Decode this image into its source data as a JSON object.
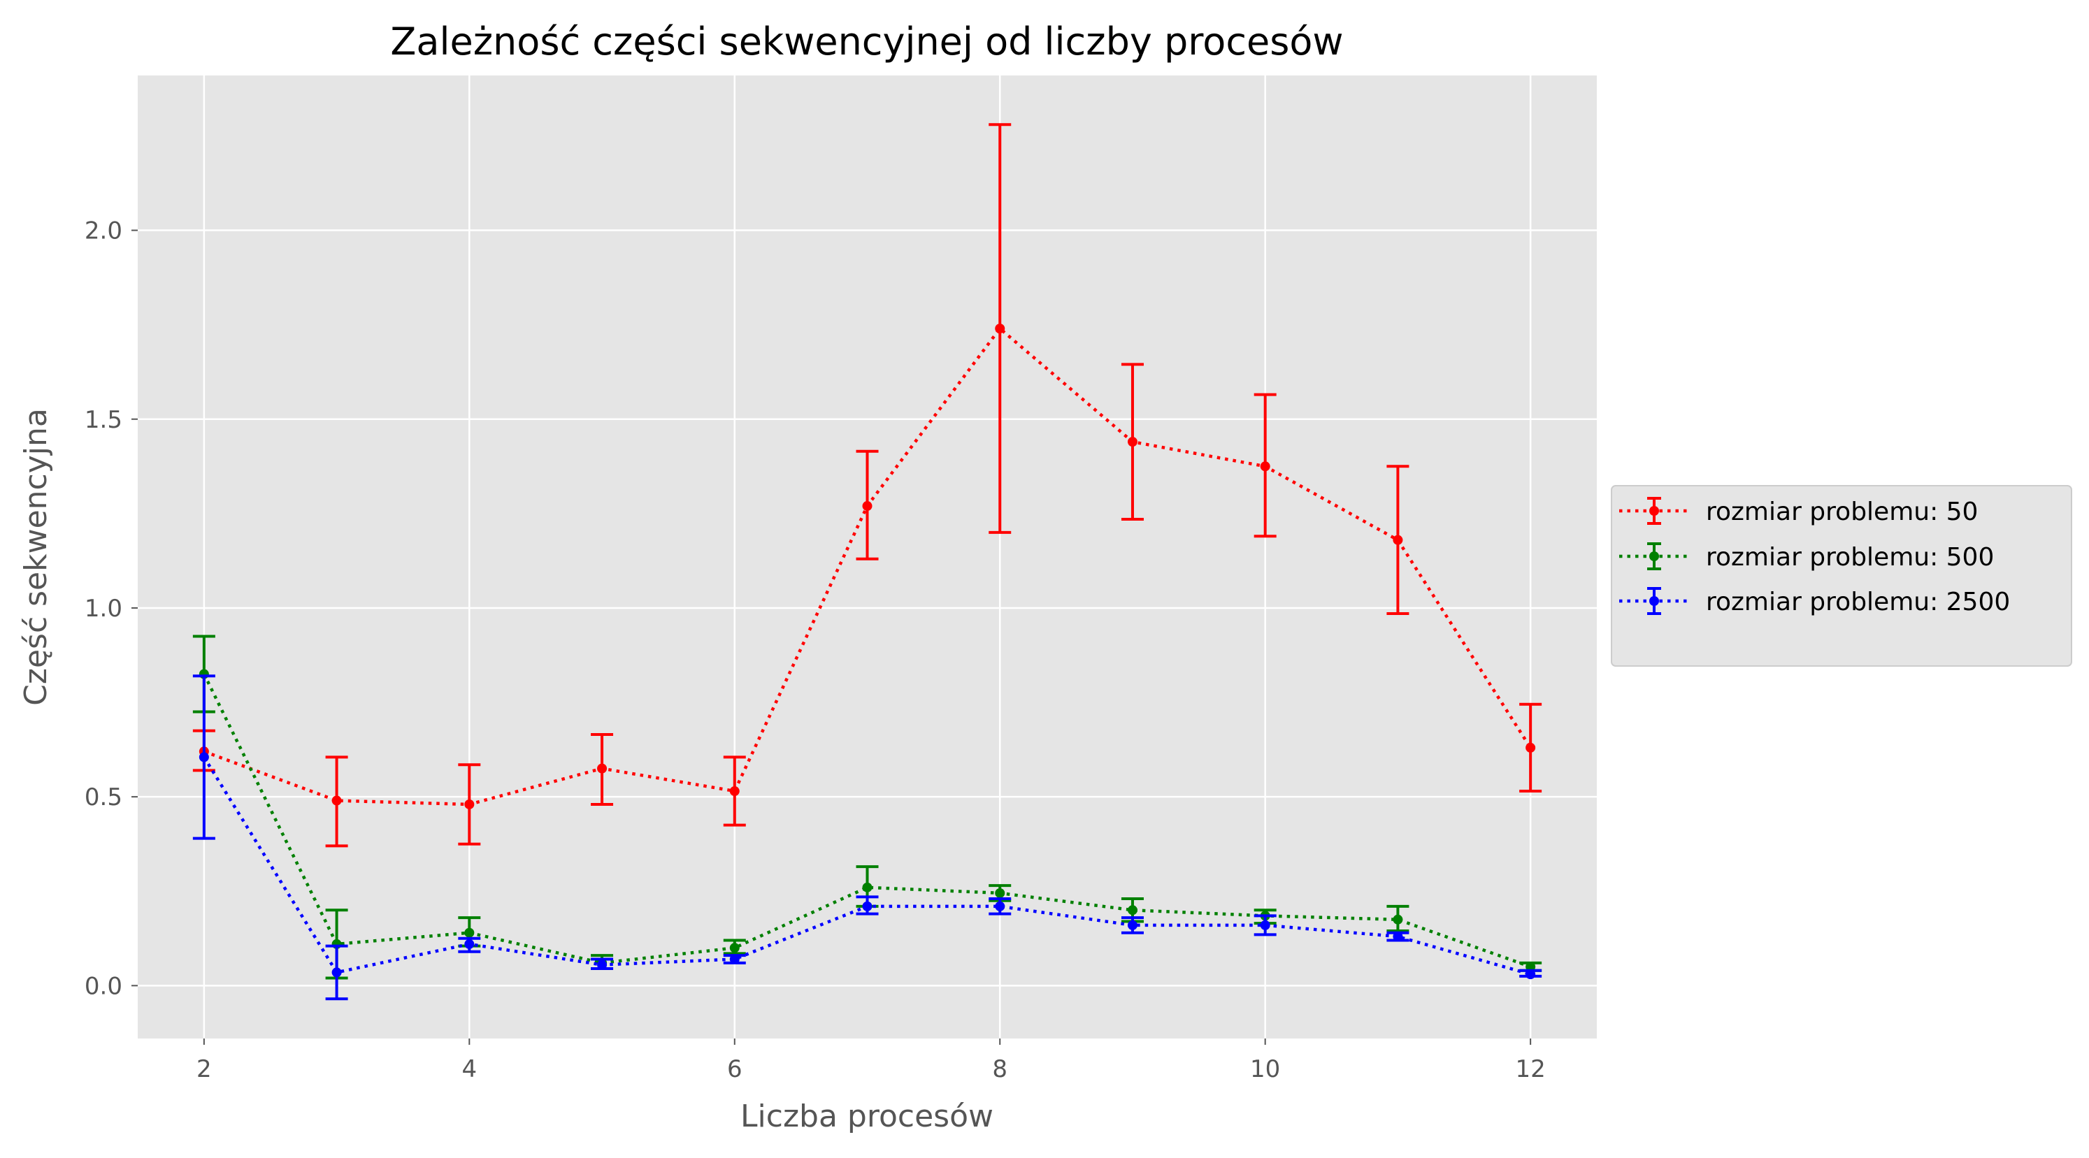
{
  "chart_data": {
    "type": "line",
    "title": "Zależność części sekwencyjnej od liczby procesów",
    "xlabel": "Liczba procesów",
    "ylabel": "Część sekwencyjna",
    "xlim": [
      1.5,
      12.5
    ],
    "ylim": [
      -0.14,
      2.41
    ],
    "xticks": [
      2,
      4,
      6,
      8,
      10,
      12
    ],
    "xtick_labels": [
      "2",
      "4",
      "6",
      "8",
      "10",
      "12"
    ],
    "yticks": [
      0.0,
      0.5,
      1.0,
      1.5,
      2.0
    ],
    "ytick_labels": [
      "0.0",
      "0.5",
      "1.0",
      "1.5",
      "2.0"
    ],
    "grid": true,
    "legend_position": "outside-right",
    "x": [
      2,
      3,
      4,
      5,
      6,
      7,
      8,
      9,
      10,
      11,
      12
    ],
    "series": [
      {
        "name": "rozmiar problemu: 50",
        "color": "#ff0000",
        "values": [
          0.62,
          0.49,
          0.48,
          0.575,
          0.515,
          1.27,
          1.74,
          1.44,
          1.375,
          1.18,
          0.63
        ],
        "lower": [
          0.57,
          0.37,
          0.375,
          0.48,
          0.425,
          1.13,
          1.2,
          1.235,
          1.19,
          0.985,
          0.515
        ],
        "upper": [
          0.675,
          0.605,
          0.585,
          0.665,
          0.605,
          1.415,
          2.28,
          1.645,
          1.565,
          1.375,
          0.745
        ]
      },
      {
        "name": "rozmiar problemu: 500",
        "color": "#008000",
        "values": [
          0.825,
          0.11,
          0.14,
          0.06,
          0.1,
          0.26,
          0.245,
          0.2,
          0.185,
          0.175,
          0.05
        ],
        "lower": [
          0.725,
          0.02,
          0.105,
          0.045,
          0.085,
          0.21,
          0.225,
          0.17,
          0.165,
          0.145,
          0.04
        ],
        "upper": [
          0.925,
          0.2,
          0.18,
          0.08,
          0.12,
          0.315,
          0.265,
          0.23,
          0.2,
          0.21,
          0.06
        ]
      },
      {
        "name": "rozmiar problemu: 2500",
        "color": "#0000ff",
        "values": [
          0.605,
          0.035,
          0.11,
          0.055,
          0.07,
          0.21,
          0.21,
          0.16,
          0.16,
          0.13,
          0.03
        ],
        "lower": [
          0.39,
          -0.035,
          0.09,
          0.045,
          0.06,
          0.19,
          0.19,
          0.14,
          0.135,
          0.12,
          0.025
        ],
        "upper": [
          0.82,
          0.105,
          0.125,
          0.07,
          0.08,
          0.235,
          0.23,
          0.18,
          0.185,
          0.14,
          0.04
        ]
      }
    ]
  }
}
